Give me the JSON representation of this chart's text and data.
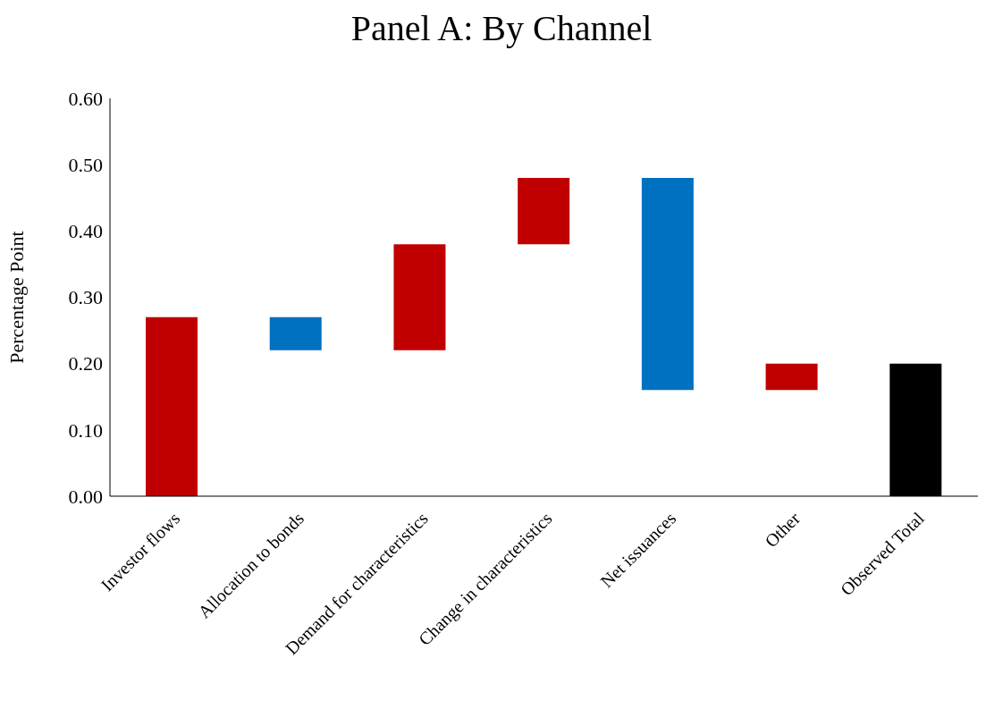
{
  "chart_data": {
    "type": "bar",
    "title": "Panel A: By Channel",
    "ylabel": "Percentage Point",
    "categories": [
      "Investor flows",
      "Allocation to bonds",
      "Demand for characteristics",
      "Change in characteristics",
      "Net issuances",
      "Other",
      "Observed Total"
    ],
    "values": [
      0.27,
      -0.05,
      0.16,
      0.1,
      -0.32,
      0.04,
      0.2
    ],
    "base": [
      0,
      0.27,
      0.22,
      0.38,
      0.48,
      0.16,
      0
    ],
    "colors": [
      "#c00000",
      "#0070c0",
      "#c00000",
      "#c00000",
      "#0070c0",
      "#c00000",
      "#000000"
    ],
    "ylim": [
      0,
      0.6
    ],
    "yticks": [
      {
        "value": 0,
        "label": "0.00"
      },
      {
        "value": 0.1,
        "label": "0.10"
      },
      {
        "value": 0.2,
        "label": "0.20"
      },
      {
        "value": 0.3,
        "label": "0.30"
      },
      {
        "value": 0.4,
        "label": "0.40"
      },
      {
        "value": 0.5,
        "label": "0.50"
      },
      {
        "value": 0.6,
        "label": "0.60"
      }
    ],
    "grid": false,
    "legend": false
  }
}
